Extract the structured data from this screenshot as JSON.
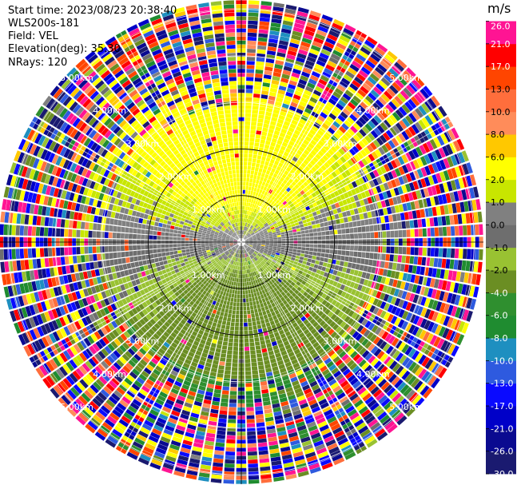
{
  "header": {
    "start_time": "Start time: 2023/08/23 20:38:40",
    "instrument": "WLS200s-181",
    "field": "Field: VEL",
    "elevation": "Elevation(deg): 35.30",
    "nrays": "NRays: 120"
  },
  "chart_data": {
    "type": "heatmap",
    "projection": "polar-ppi",
    "field": "VEL",
    "units": "m/s",
    "n_rays": 120,
    "n_gates": 60,
    "max_range_km": 5.2,
    "range_rings_km": [
      1,
      2,
      3,
      4,
      5
    ],
    "ring_labels": [
      "1.00km",
      "2.00km",
      "3.00km",
      "4.00km",
      "5.00km"
    ],
    "colorbar": {
      "boundaries": [
        -30.0,
        -26.0,
        -21.0,
        -17.0,
        -13.0,
        -10.0,
        -8.0,
        -6.0,
        -4.0,
        -2.0,
        -1.0,
        0.0,
        1.0,
        2.0,
        6.0,
        8.0,
        10.0,
        13.0,
        17.0,
        21.0,
        26.0
      ],
      "tick_labels": [
        "-30.0",
        "-26.0",
        "-21.0",
        "-17.0",
        "-13.0",
        "-10.0",
        "-8.0",
        "-6.0",
        "-4.0",
        "-2.0",
        "-1.0",
        "0.0",
        "1.0",
        "2.0",
        "6.0",
        "8.0",
        "10.0",
        "13.0",
        "17.0",
        "21.0",
        "26.0"
      ],
      "colors": [
        "#1a1a70",
        "#0a0a90",
        "#0000c8",
        "#0a0aff",
        "#2e5adf",
        "#1e8fc0",
        "#1f8c30",
        "#2f8f2f",
        "#6b8e23",
        "#99c232",
        "#6e6e6e",
        "#808080",
        "#c8e600",
        "#ffff00",
        "#ffc800",
        "#ff8c5a",
        "#ff6e3c",
        "#ff4500",
        "#ff0000",
        "#ff1493"
      ]
    }
  }
}
